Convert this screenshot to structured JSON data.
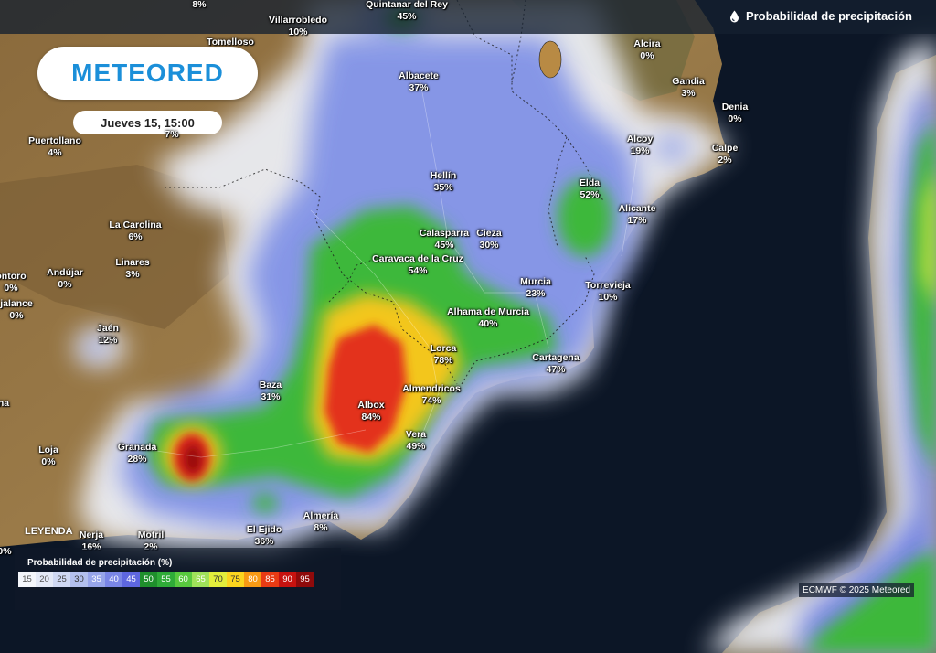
{
  "header": {
    "title": "Probabilidad de precipitación",
    "icon": "drop-icon"
  },
  "brand": {
    "logo_text": "METEORED",
    "color": "#1b8fd9"
  },
  "date_label": "Jueves 15, 15:00",
  "places": [
    {
      "name": "",
      "pct": "8%"
    },
    {
      "name": "Villarrobledo",
      "pct": "10%"
    },
    {
      "name": "Quintanar del Rey",
      "pct": "45%"
    },
    {
      "name": "Tomelloso",
      "pct": ""
    },
    {
      "name": "Alcira",
      "pct": "0%"
    },
    {
      "name": "Albacete",
      "pct": "37%"
    },
    {
      "name": "Gandia",
      "pct": "3%"
    },
    {
      "name": "Denia",
      "pct": "0%"
    },
    {
      "name": "Puertollano",
      "pct": "4%"
    },
    {
      "name": "",
      "pct": "7%"
    },
    {
      "name": "Alcoy",
      "pct": "19%"
    },
    {
      "name": "Calpe",
      "pct": "2%"
    },
    {
      "name": "Hellín",
      "pct": "35%"
    },
    {
      "name": "Elda",
      "pct": "52%"
    },
    {
      "name": "Alicante",
      "pct": "17%"
    },
    {
      "name": "La Carolina",
      "pct": "6%"
    },
    {
      "name": "Calasparra",
      "pct": "45%"
    },
    {
      "name": "Cieza",
      "pct": "30%"
    },
    {
      "name": "Linares",
      "pct": "3%"
    },
    {
      "name": "Caravaca de la Cruz",
      "pct": "54%"
    },
    {
      "name": "Andújar",
      "pct": "0%"
    },
    {
      "name": "ontoro",
      "pct": "0%"
    },
    {
      "name": "Murcia",
      "pct": "23%"
    },
    {
      "name": "Torrevieja",
      "pct": "10%"
    },
    {
      "name": "jalance",
      "pct": "0%"
    },
    {
      "name": "Alhama de Murcia",
      "pct": "40%"
    },
    {
      "name": "Jaén",
      "pct": "12%"
    },
    {
      "name": "Lorca",
      "pct": "78%"
    },
    {
      "name": "Cartagena",
      "pct": "47%"
    },
    {
      "name": "Baza",
      "pct": "31%"
    },
    {
      "name": "Almendricos",
      "pct": "74%"
    },
    {
      "name": "Albox",
      "pct": "84%"
    },
    {
      "name": "na",
      "pct": ""
    },
    {
      "name": "Vera",
      "pct": "49%"
    },
    {
      "name": "Loja",
      "pct": "0%"
    },
    {
      "name": "Granada",
      "pct": "28%"
    },
    {
      "name": "Almería",
      "pct": "8%"
    },
    {
      "name": "El Ejido",
      "pct": "36%"
    },
    {
      "name": "Nerja",
      "pct": "16%"
    },
    {
      "name": "Motril",
      "pct": "2%"
    },
    {
      "name": "",
      "pct": "0%"
    }
  ],
  "legend": {
    "title": "LEYENDA",
    "subtitle": "Probabilidad de precipitación (%)",
    "scale": [
      {
        "v": "15",
        "c": "#f4f6fb",
        "t": "#555"
      },
      {
        "v": "20",
        "c": "#e4e9f6",
        "t": "#555"
      },
      {
        "v": "25",
        "c": "#cfd8f2",
        "t": "#444"
      },
      {
        "v": "30",
        "c": "#b3c0ee",
        "t": "#333"
      },
      {
        "v": "35",
        "c": "#97a5ea",
        "t": "#fff"
      },
      {
        "v": "40",
        "c": "#7a86e6",
        "t": "#fff"
      },
      {
        "v": "45",
        "c": "#5e67e0",
        "t": "#fff"
      },
      {
        "v": "50",
        "c": "#1f8f2c",
        "t": "#fff"
      },
      {
        "v": "55",
        "c": "#2fab38",
        "t": "#fff"
      },
      {
        "v": "60",
        "c": "#58c83e",
        "t": "#fff"
      },
      {
        "v": "65",
        "c": "#9fe25a",
        "t": "#fff"
      },
      {
        "v": "70",
        "c": "#e2ee3c",
        "t": "#333"
      },
      {
        "v": "75",
        "c": "#fbd51f",
        "t": "#333"
      },
      {
        "v": "80",
        "c": "#f79a14",
        "t": "#fff"
      },
      {
        "v": "85",
        "c": "#e83b14",
        "t": "#fff"
      },
      {
        "v": "90",
        "c": "#c7120f",
        "t": "#fff"
      },
      {
        "v": "95",
        "c": "#8f0a0b",
        "t": "#fff"
      }
    ]
  },
  "credit": "ECMWF © 2025 Meteored"
}
